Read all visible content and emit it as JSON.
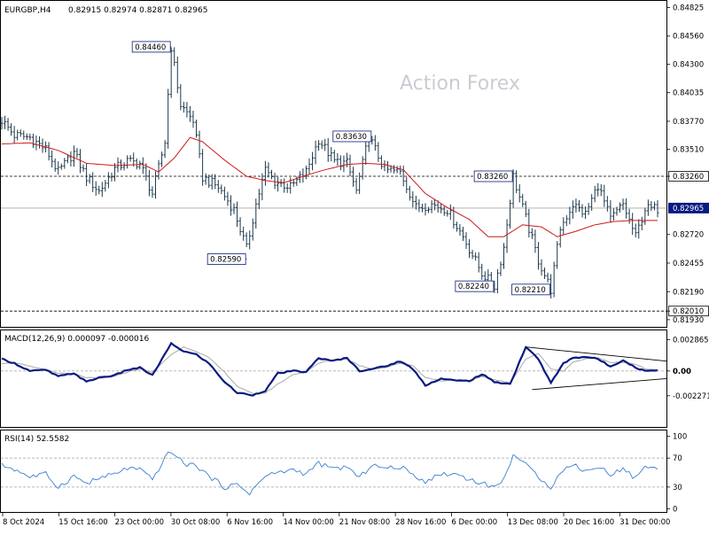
{
  "header": {
    "symbol": "EURGBP,H4",
    "ohlc": "0.82915 0.82974 0.82871 0.82965"
  },
  "watermark": "Action Forex",
  "colors": {
    "price_bars": "#1f3a4d",
    "moving_average": "#d01818",
    "macd_line": "#0a1a80",
    "signal_line": "#a9a9a9",
    "rsi_line": "#3b7fd0",
    "price_tag_fill": "#0a1a80",
    "callout_border": "#0a1a80"
  },
  "chart_data": [
    {
      "type": "ohlc-bar",
      "panel": "price",
      "title": "EURGBP,H4",
      "yticks": [
        "0.84825",
        "0.84560",
        "0.84300",
        "0.84035",
        "0.83770",
        "0.83510",
        "0.83260",
        "0.82965",
        "0.82720",
        "0.82455",
        "0.82190",
        "0.82010",
        "0.81930"
      ],
      "ylim": [
        0.8188,
        0.8487
      ],
      "xticks": [
        "8 Oct 2024",
        "15 Oct 16:00",
        "23 Oct 00:00",
        "30 Oct 08:00",
        "6 Nov 16:00",
        "14 Nov 00:00",
        "21 Nov 08:00",
        "28 Nov 16:00",
        "6 Dec 00:00",
        "13 Dec 08:00",
        "20 Dec 16:00",
        "31 Dec 00:00"
      ],
      "last_price": "0.82965",
      "horizontal_levels": [
        {
          "value": 0.8326,
          "label": "0.83260",
          "style": "dashed"
        },
        {
          "value": 0.82965,
          "label": "0.82965",
          "style": "solid"
        },
        {
          "value": 0.8201,
          "label": "0.82010",
          "style": "dashed"
        }
      ],
      "annotations": [
        {
          "label": "0.84460",
          "value": 0.8446
        },
        {
          "label": "0.82590",
          "value": 0.8259
        },
        {
          "label": "0.83630",
          "value": 0.8363
        },
        {
          "label": "0.83260",
          "value": 0.8326
        },
        {
          "label": "0.82240",
          "value": 0.8224
        },
        {
          "label": "0.82210",
          "value": 0.8221
        }
      ],
      "close_path": [
        [
          0,
          0.8378
        ],
        [
          4,
          0.8364
        ],
        [
          9,
          0.8362
        ],
        [
          14,
          0.8351
        ],
        [
          18,
          0.833
        ],
        [
          23,
          0.8348
        ],
        [
          27,
          0.8325
        ],
        [
          31,
          0.8312
        ],
        [
          36,
          0.8333
        ],
        [
          40,
          0.834
        ],
        [
          44,
          0.8338
        ],
        [
          48,
          0.831
        ],
        [
          52,
          0.8358
        ],
        [
          54,
          0.8446
        ],
        [
          57,
          0.8392
        ],
        [
          61,
          0.8378
        ],
        [
          64,
          0.8325
        ],
        [
          69,
          0.8316
        ],
        [
          74,
          0.8295
        ],
        [
          78,
          0.8259
        ],
        [
          81,
          0.83
        ],
        [
          84,
          0.8332
        ],
        [
          87,
          0.8321
        ],
        [
          92,
          0.8316
        ],
        [
          97,
          0.833
        ],
        [
          101,
          0.836
        ],
        [
          106,
          0.834
        ],
        [
          110,
          0.8338
        ],
        [
          113,
          0.8312
        ],
        [
          117,
          0.8363
        ],
        [
          122,
          0.8332
        ],
        [
          127,
          0.833
        ],
        [
          132,
          0.8297
        ],
        [
          137,
          0.83
        ],
        [
          142,
          0.8295
        ],
        [
          147,
          0.827
        ],
        [
          153,
          0.8236
        ],
        [
          157,
          0.8224
        ],
        [
          160,
          0.826
        ],
        [
          163,
          0.8326
        ],
        [
          167,
          0.8287
        ],
        [
          171,
          0.8248
        ],
        [
          175,
          0.8221
        ],
        [
          178,
          0.8278
        ],
        [
          182,
          0.83
        ],
        [
          186,
          0.8291
        ],
        [
          190,
          0.8318
        ],
        [
          194,
          0.8286
        ],
        [
          198,
          0.83
        ],
        [
          202,
          0.827
        ],
        [
          205,
          0.8296
        ],
        [
          209,
          0.8296
        ]
      ],
      "moving_average_path": [
        [
          0,
          0.8356
        ],
        [
          9,
          0.8357
        ],
        [
          18,
          0.835
        ],
        [
          27,
          0.8338
        ],
        [
          36,
          0.8336
        ],
        [
          45,
          0.8337
        ],
        [
          50,
          0.833
        ],
        [
          55,
          0.8343
        ],
        [
          60,
          0.8362
        ],
        [
          64,
          0.8358
        ],
        [
          71,
          0.8341
        ],
        [
          78,
          0.8326
        ],
        [
          84,
          0.8322
        ],
        [
          90,
          0.832
        ],
        [
          97,
          0.8327
        ],
        [
          103,
          0.8332
        ],
        [
          110,
          0.8337
        ],
        [
          116,
          0.8338
        ],
        [
          122,
          0.8337
        ],
        [
          128,
          0.8332
        ],
        [
          135,
          0.831
        ],
        [
          142,
          0.8297
        ],
        [
          149,
          0.8286
        ],
        [
          155,
          0.827
        ],
        [
          160,
          0.827
        ],
        [
          166,
          0.8281
        ],
        [
          172,
          0.8279
        ],
        [
          177,
          0.827
        ],
        [
          183,
          0.8275
        ],
        [
          189,
          0.8281
        ],
        [
          195,
          0.8284
        ],
        [
          201,
          0.8285
        ],
        [
          209,
          0.8285
        ]
      ]
    },
    {
      "type": "line",
      "panel": "MACD",
      "title": "MACD(12,26,9) 0.000097 -0.000016",
      "yticks": [
        "0.002865",
        "0.00",
        "-0.002271"
      ],
      "ylim": [
        -0.00253,
        0.00315
      ],
      "macd_path": [
        [
          0,
          0.0011
        ],
        [
          4,
          0.0007
        ],
        [
          9,
          0.0
        ],
        [
          14,
          0.0001
        ],
        [
          18,
          -0.0005
        ],
        [
          23,
          -0.0002
        ],
        [
          27,
          -0.001
        ],
        [
          31,
          -0.0006
        ],
        [
          36,
          -0.0004
        ],
        [
          40,
          0.0001
        ],
        [
          44,
          0.0003
        ],
        [
          48,
          -0.0004
        ],
        [
          54,
          0.0025
        ],
        [
          58,
          0.0018
        ],
        [
          62,
          0.0015
        ],
        [
          66,
          0.0007
        ],
        [
          71,
          -0.001
        ],
        [
          75,
          -0.002
        ],
        [
          80,
          -0.0022
        ],
        [
          84,
          -0.0018
        ],
        [
          88,
          -0.0002
        ],
        [
          93,
          0.0
        ],
        [
          97,
          -0.0001
        ],
        [
          101,
          0.0012
        ],
        [
          105,
          0.0009
        ],
        [
          110,
          0.0012
        ],
        [
          114,
          0.0
        ],
        [
          118,
          0.0002
        ],
        [
          122,
          0.0004
        ],
        [
          127,
          0.0009
        ],
        [
          131,
          0.0002
        ],
        [
          135,
          -0.0013
        ],
        [
          140,
          -0.0007
        ],
        [
          145,
          -0.0009
        ],
        [
          149,
          -0.0009
        ],
        [
          153,
          -0.0003
        ],
        [
          157,
          -0.001
        ],
        [
          162,
          -0.0012
        ],
        [
          167,
          0.0022
        ],
        [
          171,
          0.0011
        ],
        [
          175,
          -0.0011
        ],
        [
          179,
          0.0007
        ],
        [
          182,
          0.0012
        ],
        [
          186,
          0.0013
        ],
        [
          190,
          0.0011
        ],
        [
          194,
          0.0004
        ],
        [
          198,
          0.001
        ],
        [
          202,
          0.0003
        ],
        [
          205,
          0.0
        ],
        [
          209,
          0.0001
        ]
      ],
      "signal_path": [
        [
          0,
          0.0007
        ],
        [
          4,
          0.0008
        ],
        [
          9,
          0.0004
        ],
        [
          14,
          0.0001
        ],
        [
          18,
          -0.0002
        ],
        [
          23,
          -0.0003
        ],
        [
          27,
          -0.0006
        ],
        [
          31,
          -0.0007
        ],
        [
          36,
          -0.0005
        ],
        [
          40,
          -0.0001
        ],
        [
          44,
          0.0002
        ],
        [
          48,
          -0.0001
        ],
        [
          54,
          0.0015
        ],
        [
          58,
          0.0022
        ],
        [
          62,
          0.0018
        ],
        [
          66,
          0.0012
        ],
        [
          71,
          -0.0001
        ],
        [
          75,
          -0.0014
        ],
        [
          80,
          -0.0021
        ],
        [
          84,
          -0.002
        ],
        [
          88,
          -0.0012
        ],
        [
          93,
          -0.0003
        ],
        [
          97,
          -0.0001
        ],
        [
          101,
          0.0007
        ],
        [
          105,
          0.001
        ],
        [
          110,
          0.0011
        ],
        [
          114,
          0.0005
        ],
        [
          118,
          0.0002
        ],
        [
          122,
          0.0003
        ],
        [
          127,
          0.0007
        ],
        [
          131,
          0.0005
        ],
        [
          135,
          -0.0006
        ],
        [
          140,
          -0.0009
        ],
        [
          145,
          -0.0008
        ],
        [
          149,
          -0.0009
        ],
        [
          153,
          -0.0005
        ],
        [
          157,
          -0.0008
        ],
        [
          162,
          -0.0011
        ],
        [
          167,
          0.0011
        ],
        [
          171,
          0.0016
        ],
        [
          175,
          0.0002
        ],
        [
          179,
          0.0
        ],
        [
          182,
          0.0008
        ],
        [
          186,
          0.0011
        ],
        [
          190,
          0.0012
        ],
        [
          194,
          0.0008
        ],
        [
          198,
          0.0008
        ],
        [
          202,
          0.0006
        ],
        [
          205,
          0.0002
        ],
        [
          209,
          0.0001
        ]
      ],
      "trendlines": [
        {
          "from": [
            167,
            0.0022
          ],
          "to": [
            209,
            0.0009
          ]
        },
        {
          "from": [
            169,
            -0.0017
          ],
          "to": [
            209,
            -0.0007
          ]
        }
      ]
    },
    {
      "type": "line",
      "panel": "RSI",
      "title": "RSI(14) 52.5582",
      "yticks": [
        "100",
        "70",
        "30",
        "0"
      ],
      "ylim": [
        -2,
        102
      ],
      "levels": [
        70,
        30
      ],
      "rsi_path": [
        [
          0,
          60
        ],
        [
          4,
          55
        ],
        [
          9,
          44
        ],
        [
          14,
          48
        ],
        [
          18,
          30
        ],
        [
          23,
          45
        ],
        [
          27,
          35
        ],
        [
          31,
          42
        ],
        [
          36,
          48
        ],
        [
          40,
          56
        ],
        [
          44,
          54
        ],
        [
          48,
          40
        ],
        [
          52,
          70
        ],
        [
          54,
          80
        ],
        [
          58,
          62
        ],
        [
          62,
          60
        ],
        [
          66,
          45
        ],
        [
          71,
          30
        ],
        [
          75,
          33
        ],
        [
          79,
          22
        ],
        [
          84,
          45
        ],
        [
          88,
          50
        ],
        [
          93,
          54
        ],
        [
          97,
          48
        ],
        [
          101,
          63
        ],
        [
          105,
          55
        ],
        [
          110,
          58
        ],
        [
          114,
          42
        ],
        [
          118,
          62
        ],
        [
          122,
          55
        ],
        [
          127,
          58
        ],
        [
          131,
          47
        ],
        [
          135,
          38
        ],
        [
          140,
          48
        ],
        [
          145,
          48
        ],
        [
          149,
          41
        ],
        [
          153,
          35
        ],
        [
          157,
          30
        ],
        [
          160,
          40
        ],
        [
          163,
          76
        ],
        [
          167,
          60
        ],
        [
          171,
          45
        ],
        [
          175,
          30
        ],
        [
          179,
          55
        ],
        [
          183,
          60
        ],
        [
          186,
          52
        ],
        [
          190,
          58
        ],
        [
          194,
          48
        ],
        [
          198,
          55
        ],
        [
          202,
          42
        ],
        [
          205,
          60
        ],
        [
          209,
          53
        ]
      ]
    }
  ]
}
